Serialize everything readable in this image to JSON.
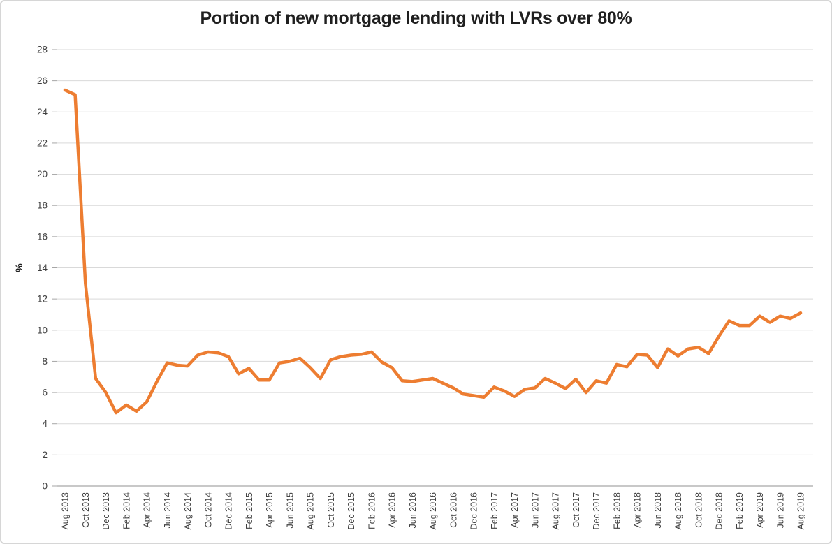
{
  "chart_data": {
    "type": "line",
    "title": "Portion of new mortgage lending with LVRs over 80%",
    "xlabel": "",
    "ylabel": "%",
    "ylim": [
      0,
      28
    ],
    "y_tick_step": 2,
    "y_tick_labels": [
      "0",
      "2",
      "4",
      "6",
      "8",
      "10",
      "12",
      "14",
      "16",
      "18",
      "20",
      "22",
      "24",
      "26",
      "28"
    ],
    "x_tick_every": 2,
    "grid": true,
    "legend_position": "none",
    "x": [
      "Aug 2013",
      "Sep 2013",
      "Oct 2013",
      "Nov 2013",
      "Dec 2013",
      "Jan 2014",
      "Feb 2014",
      "Mar 2014",
      "Apr 2014",
      "May 2014",
      "Jun 2014",
      "Jul 2014",
      "Aug 2014",
      "Sep 2014",
      "Oct 2014",
      "Nov 2014",
      "Dec 2014",
      "Jan 2015",
      "Feb 2015",
      "Mar 2015",
      "Apr 2015",
      "May 2015",
      "Jun 2015",
      "Jul 2015",
      "Aug 2015",
      "Sep 2015",
      "Oct 2015",
      "Nov 2015",
      "Dec 2015",
      "Jan 2016",
      "Feb 2016",
      "Mar 2016",
      "Apr 2016",
      "May 2016",
      "Jun 2016",
      "Jul 2016",
      "Aug 2016",
      "Sep 2016",
      "Oct 2016",
      "Nov 2016",
      "Dec 2016",
      "Jan 2017",
      "Feb 2017",
      "Mar 2017",
      "Apr 2017",
      "May 2017",
      "Jun 2017",
      "Jul 2017",
      "Aug 2017",
      "Sep 2017",
      "Oct 2017",
      "Nov 2017",
      "Dec 2017",
      "Jan 2018",
      "Feb 2018",
      "Mar 2018",
      "Apr 2018",
      "May 2018",
      "Jun 2018",
      "Jul 2018",
      "Aug 2018",
      "Sep 2018",
      "Oct 2018",
      "Nov 2018",
      "Dec 2018",
      "Jan 2019",
      "Feb 2019",
      "Mar 2019",
      "Apr 2019",
      "May 2019",
      "Jun 2019",
      "Jul 2019",
      "Aug 2019"
    ],
    "values": [
      25.4,
      25.1,
      13.0,
      6.9,
      6.0,
      4.7,
      5.2,
      4.8,
      5.4,
      6.7,
      7.9,
      7.75,
      7.7,
      8.4,
      8.6,
      8.55,
      8.3,
      7.2,
      7.55,
      6.8,
      6.8,
      7.9,
      8.0,
      8.2,
      7.6,
      6.9,
      8.1,
      8.3,
      8.4,
      8.45,
      8.6,
      7.95,
      7.6,
      6.75,
      6.7,
      6.8,
      6.9,
      6.6,
      6.3,
      5.9,
      5.8,
      5.7,
      6.35,
      6.1,
      5.75,
      6.2,
      6.3,
      6.9,
      6.6,
      6.25,
      6.85,
      6.0,
      6.75,
      6.6,
      7.8,
      7.65,
      8.45,
      8.4,
      7.6,
      8.8,
      8.35,
      8.8,
      8.9,
      8.5,
      9.6,
      10.6,
      10.3,
      10.3,
      10.9,
      10.5,
      10.9,
      10.75,
      11.1
    ],
    "line_color": "#ED7D31",
    "gridline_color": "#D9D9D9",
    "axis_line_color": "#A6A6A6",
    "tick_text_color": "#3f3f3f"
  }
}
